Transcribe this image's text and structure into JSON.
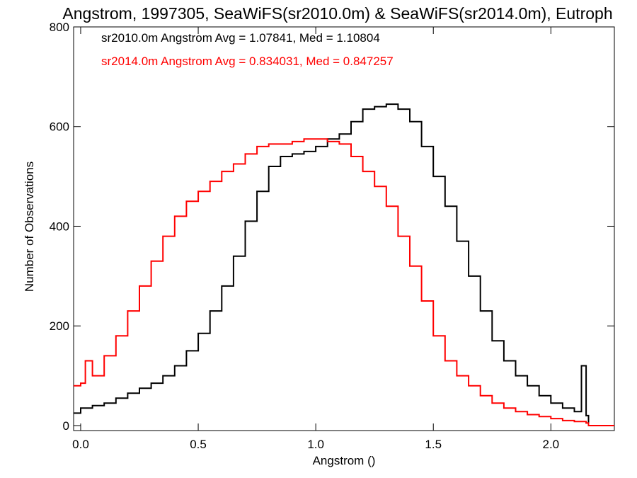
{
  "chart_data": {
    "type": "line",
    "title": "Angstrom, 1997305, SeaWiFS(sr2010.0m) & SeaWiFS(sr2014.0m), Eutroph",
    "xlabel": "Angstrom ()",
    "ylabel": "Number of Observations",
    "xlim": [
      -0.03,
      2.27
    ],
    "ylim": [
      -10,
      800
    ],
    "xticks": [
      0.0,
      0.5,
      1.0,
      1.5,
      2.0
    ],
    "xtick_labels": [
      "0.0",
      "0.5",
      "1.0",
      "1.5",
      "2.0"
    ],
    "yticks": [
      0,
      200,
      400,
      600,
      800
    ],
    "ytick_labels": [
      "0",
      "200",
      "400",
      "600",
      "800"
    ],
    "annotations": [
      "sr2010.0m Angstrom Avg = 1.07841, Med = 1.10804",
      "sr2014.0m Angstrom Avg = 0.834031, Med = 0.847257"
    ],
    "series": [
      {
        "color": "#000000",
        "x": [
          -0.03,
          0.0,
          0.05,
          0.1,
          0.15,
          0.2,
          0.25,
          0.3,
          0.35,
          0.4,
          0.45,
          0.5,
          0.55,
          0.6,
          0.65,
          0.7,
          0.75,
          0.8,
          0.85,
          0.9,
          0.95,
          1.0,
          1.05,
          1.1,
          1.15,
          1.2,
          1.25,
          1.3,
          1.35,
          1.4,
          1.45,
          1.5,
          1.55,
          1.6,
          1.65,
          1.7,
          1.75,
          1.8,
          1.85,
          1.9,
          1.95,
          2.0,
          2.05,
          2.1,
          2.13,
          2.15,
          2.16,
          2.2,
          2.27
        ],
        "y": [
          25,
          35,
          40,
          45,
          55,
          65,
          75,
          85,
          100,
          120,
          150,
          185,
          230,
          280,
          340,
          410,
          470,
          520,
          540,
          545,
          550,
          560,
          575,
          585,
          610,
          635,
          640,
          645,
          635,
          610,
          560,
          500,
          440,
          370,
          300,
          230,
          170,
          130,
          100,
          80,
          60,
          45,
          35,
          28,
          120,
          20,
          0,
          0,
          0
        ]
      },
      {
        "color": "#ff0000",
        "x": [
          -0.03,
          0.0,
          0.02,
          0.05,
          0.1,
          0.15,
          0.2,
          0.25,
          0.3,
          0.35,
          0.4,
          0.45,
          0.5,
          0.55,
          0.6,
          0.65,
          0.7,
          0.75,
          0.8,
          0.85,
          0.9,
          0.95,
          1.0,
          1.05,
          1.1,
          1.15,
          1.2,
          1.25,
          1.3,
          1.35,
          1.4,
          1.45,
          1.5,
          1.55,
          1.6,
          1.65,
          1.7,
          1.75,
          1.8,
          1.85,
          1.9,
          1.95,
          2.0,
          2.05,
          2.1,
          2.15,
          2.16,
          2.2,
          2.27
        ],
        "y": [
          80,
          85,
          130,
          100,
          140,
          180,
          230,
          280,
          330,
          380,
          420,
          450,
          470,
          490,
          510,
          525,
          545,
          560,
          565,
          565,
          570,
          575,
          575,
          570,
          565,
          540,
          510,
          480,
          440,
          380,
          320,
          250,
          180,
          130,
          100,
          80,
          60,
          45,
          35,
          28,
          22,
          18,
          14,
          10,
          8,
          5,
          0,
          0,
          0
        ]
      }
    ]
  }
}
